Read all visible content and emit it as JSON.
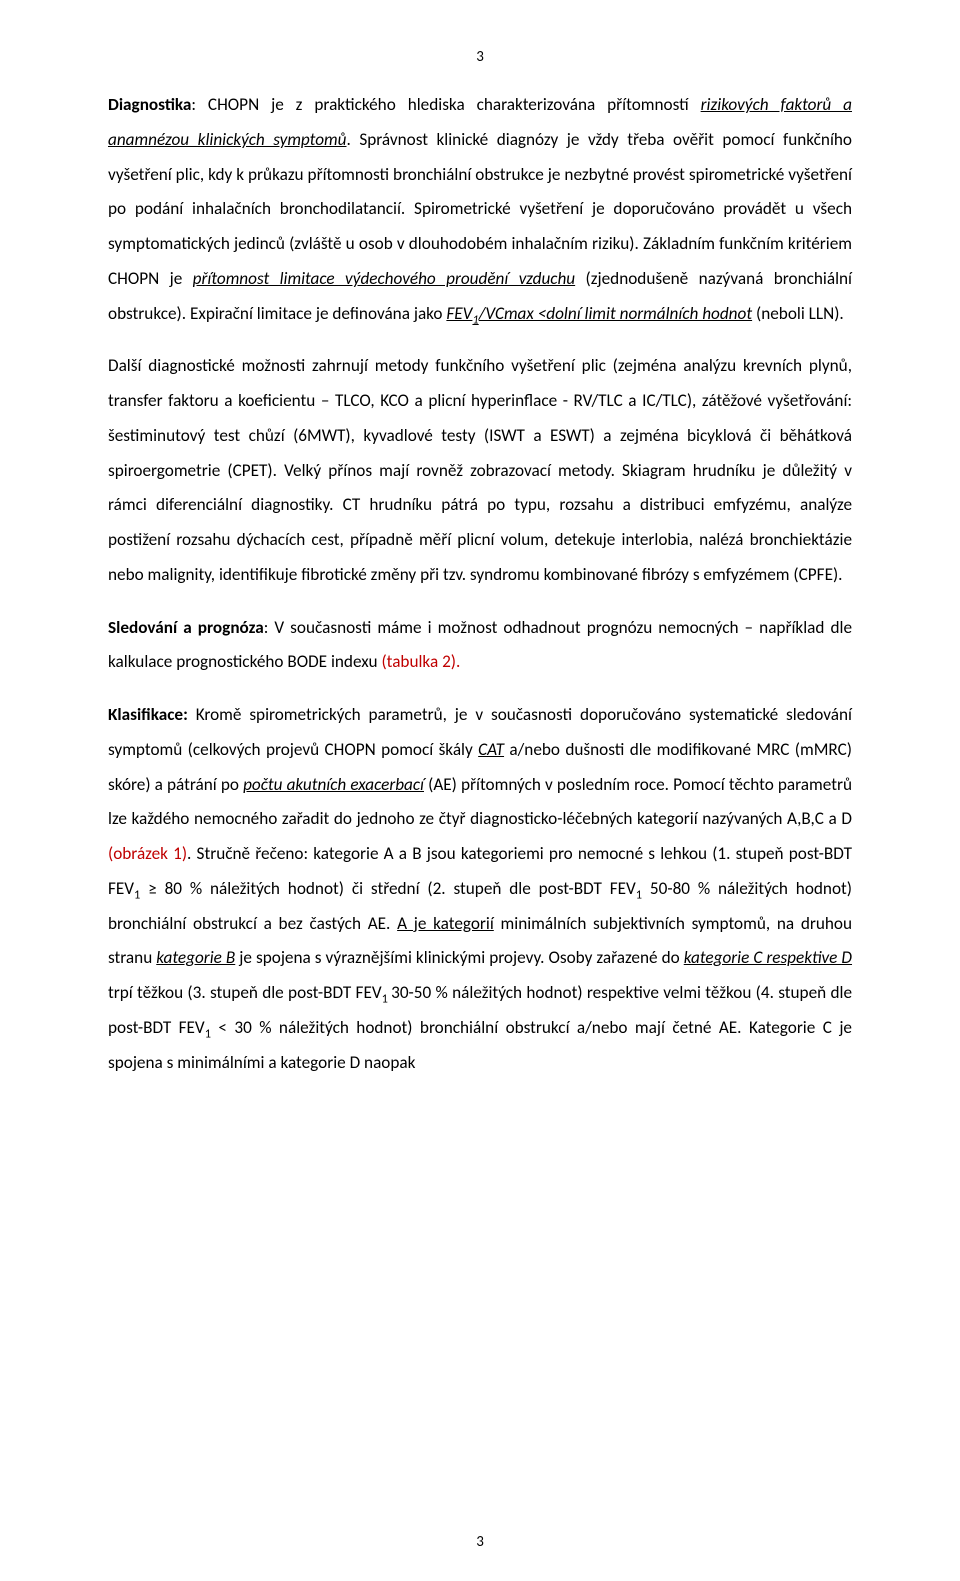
{
  "page": {
    "number_top": "3",
    "number_bottom": "3"
  },
  "p1": {
    "lead_bold": "Diagnostika",
    "t1": ": CHOPN je z praktického hlediska charakterizována přítomností ",
    "u1": "rizikových faktorů a anamnézou klinických symptomů",
    "t2": ". Správnost klinické diagnózy je vždy třeba ověřit pomocí funkčního vyšetření plic, kdy k průkazu přítomnosti bronchiální obstrukce je nezbytné provést spirometrické vyšetření po podání inhalačních bronchodilatancií. Spirometrické vyšetření je doporučováno provádět u všech symptomatických jedinců (zvláště u osob v dlouhodobém inhalačním riziku). Základním funkčním kritériem CHOPN je ",
    "u2": "přítomnost limitace výdechového proudění vzduchu",
    "t3": " (zjednodušeně nazývaná bronchiální obstrukce). Expirační limitace je definována jako ",
    "u3a": "FEV",
    "u3sub": "1",
    "u3b": "/VCmax ˂dolní limit normálních hodnot",
    "t4": " (neboli LLN)."
  },
  "p2": {
    "t1": "Další diagnostické možnosti zahrnují metody funkčního vyšetření plic (zejména analýzu krevních plynů, transfer faktoru a koeficientu – TLCO, KCO a plicní hyperinflace - RV/TLC a IC/TLC), zátěžové vyšetřování: šestiminutový test chůzí (6MWT), kyvadlové testy (ISWT a ESWT) a zejména bicyklová či běhátková spiroergometrie (CPET). Velký přínos mají rovněž zobrazovací metody. Skiagram hrudníku je důležitý v rámci diferenciální diagnostiky. CT hrudníku pátrá po typu, rozsahu a distribuci emfyzému, analýze postižení rozsahu dýchacích cest, případně měří plicní volum, detekuje interlobia, nalézá bronchiektázie nebo malignity, identifikuje fibrotické změny při tzv. syndromu kombinované fibrózy s emfyzémem (CPFE)."
  },
  "p3": {
    "lead_bold": "Sledování a prognóza",
    "t1": ": V současnosti máme i možnost odhadnout prognózu nemocných – například dle kalkulace prognostického BODE indexu ",
    "red1": "(tabulka 2)."
  },
  "p4": {
    "lead_bold": "Klasifikace:",
    "t1": " Kromě spirometrických parametrů, je v současnosti doporučováno systematické sledování symptomů (celkových projevů CHOPN pomocí škály ",
    "u1": "CAT",
    "t2": " a/nebo dušnosti dle modifikované MRC (mMRC) skóre) a pátrání po ",
    "u2": "počtu akutních exacerbací",
    "t3": " (AE) přítomných v posledním roce. Pomocí těchto parametrů lze každého nemocného zařadit do jednoho ze čtyř diagnosticko-léčebných kategorií nazývaných A,B,C a D ",
    "red1": "(obrázek 1)",
    "t4": ". Stručně řečeno: kategorie A a B jsou kategoriemi pro nemocné s lehkou (1. stupeň post-BDT FEV",
    "sub1": "1",
    "t5": " ≥ 80 % náležitých hodnot) či střední (2. stupeň dle post-BDT FEV",
    "sub2": "1",
    "t6": " 50-80 % náležitých hodnot) bronchiální obstrukcí a bez častých AE. ",
    "u3": "A je kategorií",
    "t7": " minimálních subjektivních symptomů, na druhou stranu ",
    "u4": "kategorie B",
    "t8": " je spojena s výraznějšími klinickými projevy. Osoby zařazené do ",
    "u5": "kategorie C respektive D",
    "t9": " trpí těžkou (3. stupeň dle post-BDT FEV",
    "sub3": "1 ",
    "t10": "30-50 % náležitých hodnot) respektive velmi těžkou (4. stupeň dle post-BDT FEV",
    "sub4": "1",
    "t11": " ˂ 30 % náležitých hodnot) bronchiální obstrukcí a/nebo mají četné AE. Kategorie C je spojena s minimálními a kategorie D naopak"
  }
}
